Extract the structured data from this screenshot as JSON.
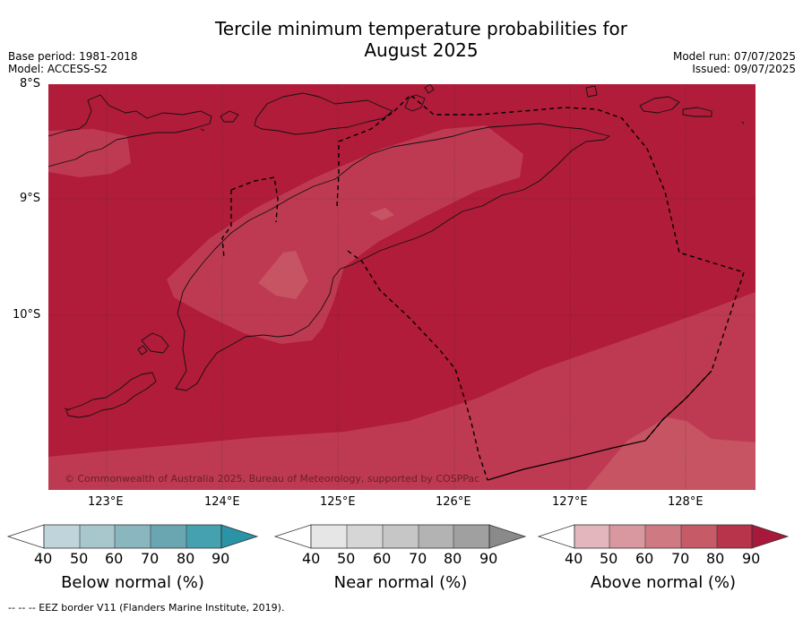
{
  "title": {
    "line1": "Tercile minimum temperature probabilities for",
    "line2": "August 2025"
  },
  "meta": {
    "base_period": "Base period: 1981-2018",
    "model": "Model: ACCESS-S2",
    "model_run": "Model run: 07/07/2025",
    "issued": "Issued: 09/07/2025"
  },
  "map": {
    "copyright": "© Commonwealth of Australia 2025, Bureau of Meteorology, supported by COSPPac",
    "lat_labels": [
      "8°S",
      "9°S",
      "10°S"
    ],
    "lon_labels": [
      "123°E",
      "124°E",
      "125°E",
      "126°E",
      "127°E",
      "128°E"
    ],
    "colors": {
      "above_80": "#b01c3a",
      "above_70": "#be3a52",
      "above_60": "#c75462"
    }
  },
  "colorbars": [
    {
      "caption": "Below normal (%)",
      "ticks": [
        "40",
        "50",
        "60",
        "70",
        "80",
        "90"
      ],
      "colors": [
        "#ffffff",
        "#bfd5db",
        "#a7c7cd",
        "#89b6bf",
        "#6aa6b2",
        "#45a0b0",
        "#2a93a6"
      ]
    },
    {
      "caption": "Near normal (%)",
      "ticks": [
        "40",
        "50",
        "60",
        "70",
        "80",
        "90"
      ],
      "colors": [
        "#ffffff",
        "#e6e6e6",
        "#d6d6d6",
        "#c6c6c6",
        "#b3b3b3",
        "#a0a0a0",
        "#8a8a8a"
      ]
    },
    {
      "caption": "Above normal (%)",
      "ticks": [
        "40",
        "50",
        "60",
        "70",
        "80",
        "90"
      ],
      "colors": [
        "#ffffff",
        "#e2b6bc",
        "#d9979f",
        "#cf7a83",
        "#c65a67",
        "#b8344a",
        "#a8183a"
      ]
    }
  ],
  "footer": "--  --  -- EEZ border V11 (Flanders Marine Institute, 2019)."
}
